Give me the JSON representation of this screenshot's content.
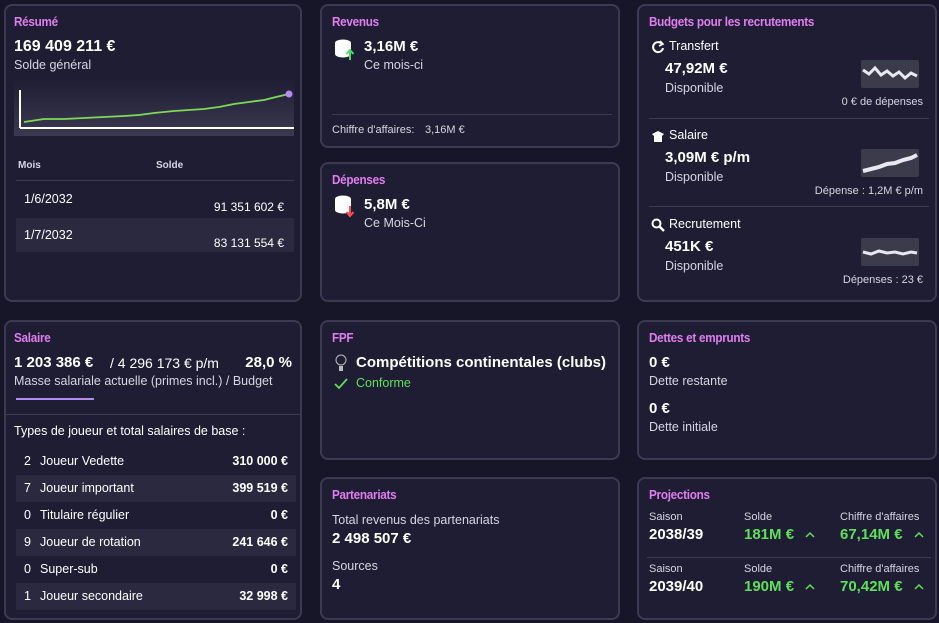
{
  "resume": {
    "title": "Résumé",
    "balance": "169 409 211 €",
    "balance_label": "Solde général",
    "table": {
      "headers": [
        "Mois",
        "Solde"
      ],
      "rows": [
        [
          "1/6/2032",
          "91 351 602 €"
        ],
        [
          "1/7/2032",
          "83 131 554 €"
        ]
      ]
    }
  },
  "revenus": {
    "title": "Revenus",
    "amount": "3,16M €",
    "period": "Ce mois-ci",
    "footer_label": "Chiffre d'affaires:",
    "footer_value": "3,16M €"
  },
  "depenses": {
    "title": "Dépenses",
    "amount": "5,8M €",
    "period": "Ce Mois-Ci"
  },
  "budgets": {
    "title": "Budgets pour les recrutements",
    "items": [
      {
        "label": "Transfert",
        "amount": "47,92M €",
        "status": "Disponible",
        "note": "0 € de dépenses"
      },
      {
        "label": "Salaire",
        "amount": "3,09M € p/m",
        "status": "Disponible",
        "note": "Dépense : 1,2M € p/m"
      },
      {
        "label": "Recrutement",
        "amount": "451K €",
        "status": "Disponible",
        "note": "Dépenses : 23 €"
      }
    ]
  },
  "salaire": {
    "title": "Salaire",
    "current": "1 203 386 €",
    "budget": "/ 4 296 173 € p/m",
    "percent": "28,0 %",
    "caption": "Masse salariale actuelle (primes incl.) / Budget",
    "types_heading": "Types de joueur et total salaires de base :",
    "rows": [
      [
        2,
        "Joueur Vedette",
        "310 000 €"
      ],
      [
        7,
        "Joueur important",
        "399 519 €"
      ],
      [
        0,
        "Titulaire régulier",
        "0 €"
      ],
      [
        9,
        "Joueur de rotation",
        "241 646 €"
      ],
      [
        0,
        "Super-sub",
        "0 €"
      ],
      [
        1,
        "Joueur secondaire",
        "32 998 €"
      ]
    ]
  },
  "fpf": {
    "title": "FPF",
    "competition": "Compétitions continentales (clubs)",
    "status": "Conforme"
  },
  "partenariats": {
    "title": "Partenariats",
    "total_label": "Total revenus des partenariats",
    "total": "2 498 507 €",
    "sources_label": "Sources",
    "sources": 4
  },
  "dettes": {
    "title": "Dettes et emprunts",
    "items": [
      {
        "amount": "0 €",
        "label": "Dette restante"
      },
      {
        "amount": "0 €",
        "label": "Dette initiale"
      }
    ]
  },
  "projections": {
    "title": "Projections",
    "rows": [
      {
        "season_label": "Saison",
        "season": "2038/39",
        "balance_label": "Solde",
        "balance": "181M €",
        "revenue_label": "Chiffre d'affaires",
        "revenue": "67,14M €"
      },
      {
        "season_label": "Saison",
        "season": "2039/40",
        "balance_label": "Solde",
        "balance": "190M €",
        "revenue_label": "Chiffre d'affaires",
        "revenue": "70,42M €"
      }
    ]
  }
}
